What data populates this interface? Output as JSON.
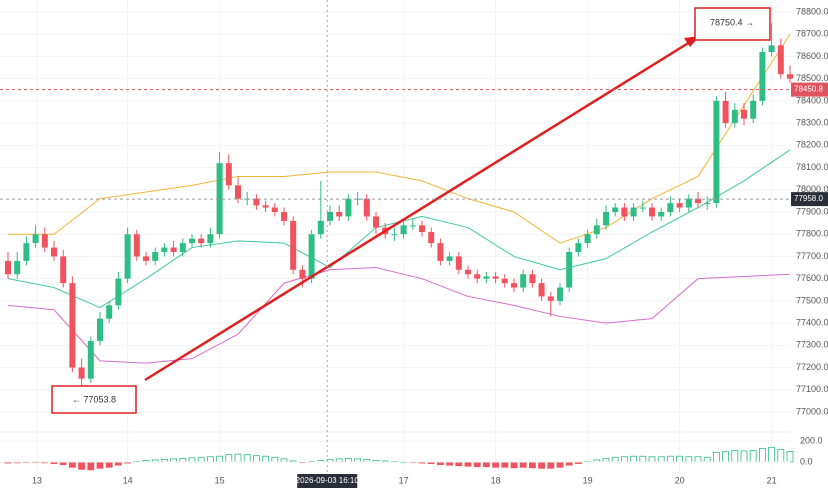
{
  "chart_data": {
    "type": "candlestick",
    "open": [
      77680,
      77620,
      77680,
      77760,
      77800,
      77740,
      77700,
      77580,
      77200,
      77150,
      77320,
      77420,
      77480,
      77600,
      77800,
      77700,
      77680,
      77720,
      77740,
      77720,
      77760,
      77780,
      77760,
      77800,
      78120,
      78020,
      77960,
      77960,
      77930,
      77920,
      77900,
      77860,
      77640,
      77600,
      77800,
      77860,
      77900,
      77880,
      77960,
      77960,
      77880,
      77830,
      77800,
      77800,
      77840,
      77840,
      77810,
      77760,
      77680,
      77700,
      77640,
      77620,
      77600,
      77610,
      77600,
      77580,
      77560,
      77620,
      77580,
      77520,
      77500,
      77560,
      77720,
      77760,
      77800,
      77840,
      77900,
      77920,
      77880,
      77920,
      77920,
      77880,
      77900,
      77940,
      77920,
      77960,
      77940,
      77940,
      78400,
      78300,
      78360,
      78320,
      78400,
      78620,
      78650,
      78520
    ],
    "close": [
      77620,
      77680,
      77760,
      77800,
      77740,
      77700,
      77580,
      77200,
      77150,
      77320,
      77420,
      77480,
      77600,
      77800,
      77700,
      77680,
      77720,
      77740,
      77720,
      77760,
      77780,
      77760,
      77800,
      78120,
      78020,
      77960,
      77960,
      77930,
      77920,
      77900,
      77860,
      77640,
      77600,
      77800,
      77860,
      77900,
      77880,
      77960,
      77960,
      77880,
      77830,
      77800,
      77800,
      77840,
      77840,
      77810,
      77760,
      77680,
      77700,
      77640,
      77620,
      77600,
      77610,
      77600,
      77580,
      77560,
      77620,
      77580,
      77520,
      77500,
      77560,
      77720,
      77760,
      77800,
      77840,
      77900,
      77920,
      77880,
      77920,
      77920,
      77880,
      77900,
      77940,
      77920,
      77960,
      77940,
      77940,
      78400,
      78300,
      78360,
      78320,
      78400,
      78620,
      78650,
      78520,
      78500
    ],
    "high": [
      77720,
      77720,
      77790,
      77840,
      77830,
      77770,
      77730,
      77610,
      77240,
      77340,
      77450,
      77500,
      77630,
      77830,
      77820,
      77720,
      77740,
      77760,
      77770,
      77780,
      77800,
      77800,
      77830,
      78170,
      78160,
      78060,
      77990,
      77980,
      77950,
      77940,
      77920,
      77880,
      77660,
      77820,
      78040,
      77930,
      77930,
      77980,
      77990,
      77980,
      77900,
      77850,
      77830,
      77860,
      77870,
      77860,
      77830,
      77780,
      77720,
      77720,
      77660,
      77640,
      77630,
      77630,
      77620,
      77600,
      77640,
      77640,
      77600,
      77540,
      77580,
      77740,
      77780,
      77820,
      77870,
      77930,
      77940,
      77940,
      77940,
      77950,
      77940,
      77920,
      77970,
      77960,
      77980,
      77990,
      77970,
      78420,
      78440,
      78390,
      78390,
      78430,
      78640,
      78750.4,
      78680,
      78560
    ],
    "low": [
      77600,
      77600,
      77660,
      77740,
      77720,
      77680,
      77560,
      77180,
      77053.8,
      77130,
      77300,
      77400,
      77460,
      77580,
      77680,
      77660,
      77660,
      77700,
      77700,
      77700,
      77740,
      77740,
      77740,
      77780,
      78000,
      77940,
      77930,
      77910,
      77900,
      77880,
      77840,
      77620,
      77560,
      77580,
      77780,
      77840,
      77860,
      77860,
      77930,
      77860,
      77800,
      77780,
      77770,
      77780,
      77820,
      77790,
      77740,
      77660,
      77660,
      77620,
      77600,
      77580,
      77580,
      77580,
      77560,
      77540,
      77540,
      77560,
      77500,
      77430,
      77480,
      77540,
      77700,
      77740,
      77780,
      77820,
      77880,
      77860,
      77860,
      77900,
      77860,
      77860,
      77880,
      77900,
      77900,
      77920,
      77910,
      77920,
      78280,
      78280,
      78290,
      78300,
      78380,
      78600,
      78500,
      78480
    ],
    "up_color": "#2ebd85",
    "down_color": "#f0525e",
    "bands": [
      {
        "color": "#f5b335",
        "x": [
          0,
          5,
          10,
          15,
          20,
          25,
          30,
          35,
          40,
          45,
          50,
          55,
          60,
          65,
          70,
          75,
          80,
          85
        ],
        "values": [
          77800,
          77800,
          77960,
          77990,
          78020,
          78060,
          78060,
          78080,
          78080,
          78040,
          77960,
          77900,
          77760,
          77830,
          77960,
          78060,
          78380,
          78700
        ]
      },
      {
        "color": "#3cc8a0",
        "x": [
          0,
          5,
          10,
          15,
          20,
          25,
          30,
          35,
          40,
          45,
          50,
          55,
          60,
          65,
          70,
          75,
          80,
          85
        ],
        "values": [
          77600,
          77560,
          77470,
          77600,
          77740,
          77770,
          77760,
          77650,
          77830,
          77880,
          77830,
          77700,
          77640,
          77690,
          77810,
          77920,
          78040,
          78180
        ]
      },
      {
        "color": "#d86bc9",
        "x": [
          0,
          5,
          10,
          15,
          20,
          25,
          30,
          35,
          40,
          45,
          50,
          55,
          60,
          65,
          70,
          75,
          80,
          85
        ],
        "values": [
          77480,
          77460,
          77230,
          77220,
          77240,
          77350,
          77580,
          77640,
          77650,
          77600,
          77520,
          77480,
          77430,
          77400,
          77420,
          77600,
          77610,
          77620
        ]
      }
    ],
    "ylim": [
      77000,
      78800
    ],
    "yticks": [
      {
        "value": 77000,
        "label": "77000.0"
      },
      {
        "value": 77100,
        "label": "77100.0"
      },
      {
        "value": 77200,
        "label": "77200.0"
      },
      {
        "value": 77300,
        "label": "77300.0"
      },
      {
        "value": 77400,
        "label": "77400.0"
      },
      {
        "value": 77500,
        "label": "77500.0"
      },
      {
        "value": 77600,
        "label": "77600.0"
      },
      {
        "value": 77700,
        "label": "77700.0"
      },
      {
        "value": 77800,
        "label": "77800.0"
      },
      {
        "value": 77900,
        "label": "77900.0"
      },
      {
        "value": 78000,
        "label": "78000.0"
      },
      {
        "value": 78100,
        "label": "78100.0"
      },
      {
        "value": 78200,
        "label": "78200.0"
      },
      {
        "value": 78300,
        "label": "78300.0"
      },
      {
        "value": 78400,
        "label": "78400.0"
      },
      {
        "value": 78500,
        "label": "78500.0"
      },
      {
        "value": 78600,
        "label": "78600.0"
      },
      {
        "value": 78700,
        "label": "78700.0"
      },
      {
        "value": 78800,
        "label": "78800.0"
      }
    ],
    "xticks": [
      {
        "value": 3.15,
        "label": "13"
      },
      {
        "value": 13,
        "label": "14"
      },
      {
        "value": 23,
        "label": "15"
      },
      {
        "value": 43,
        "label": "17"
      },
      {
        "value": 53,
        "label": "18"
      },
      {
        "value": 63,
        "label": "19"
      },
      {
        "value": 73,
        "label": "20"
      },
      {
        "value": 83,
        "label": "21"
      }
    ],
    "last_price": {
      "value": 78450.8,
      "label": "78450.8"
    },
    "crosshair": {
      "x": 34.7,
      "x_label": "2026-09-03 16:10",
      "y": 77958,
      "y_label": "77958.0"
    },
    "min_label": "← 77053.8",
    "max_label": "78750.4 →",
    "macd_hist": [
      -10,
      -8,
      -5,
      -5,
      -8,
      -15,
      -25,
      -50,
      -70,
      -75,
      -60,
      -50,
      -30,
      -10,
      5,
      15,
      20,
      25,
      30,
      35,
      40,
      45,
      50,
      55,
      70,
      75,
      70,
      60,
      55,
      45,
      30,
      10,
      -5,
      5,
      15,
      25,
      30,
      35,
      30,
      25,
      15,
      10,
      5,
      0,
      -5,
      -10,
      -15,
      -25,
      -30,
      -35,
      -40,
      -45,
      -45,
      -50,
      -50,
      -55,
      -50,
      -55,
      -60,
      -60,
      -50,
      -30,
      -15,
      5,
      20,
      35,
      45,
      50,
      55,
      55,
      50,
      50,
      55,
      55,
      50,
      50,
      45,
      90,
      100,
      110,
      105,
      110,
      130,
      140,
      120,
      100
    ],
    "macd_yticks": [
      {
        "value": 200,
        "label": "200.0"
      },
      {
        "value": 0,
        "label": "0.0"
      }
    ]
  }
}
